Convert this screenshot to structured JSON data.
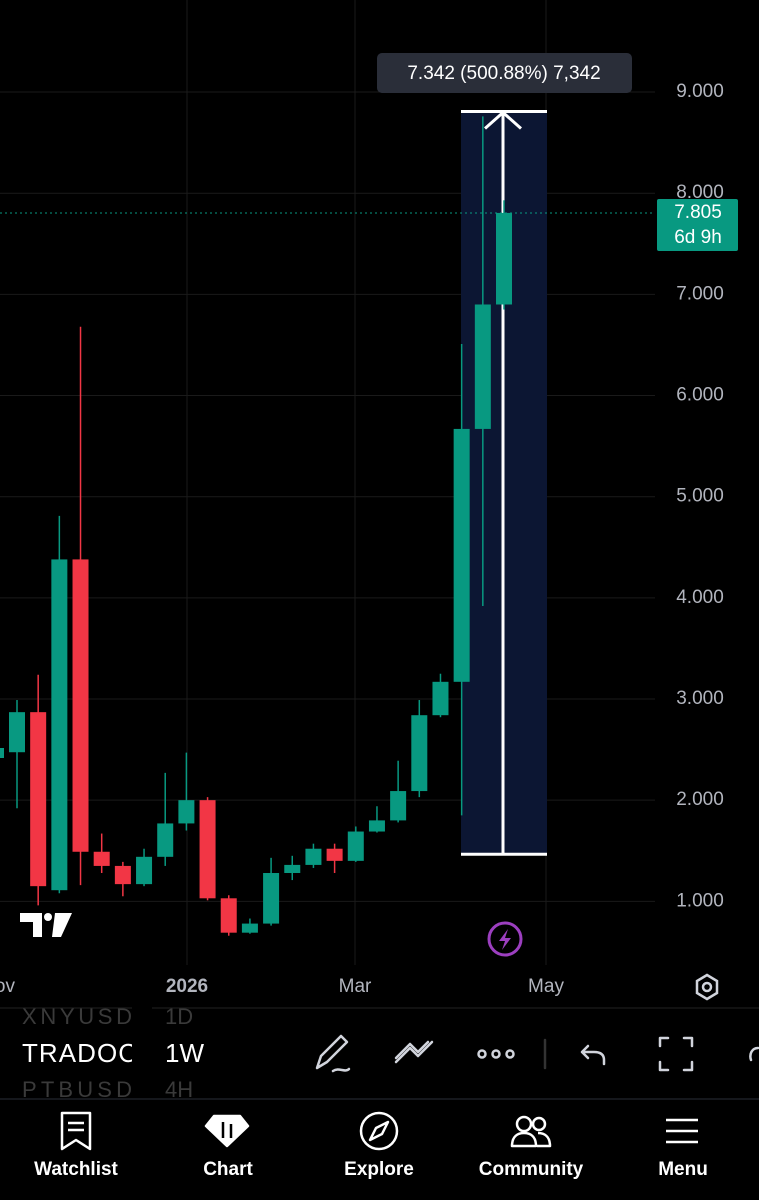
{
  "chart_data": {
    "type": "candlestick",
    "open": [
      2.474,
      2.87,
      1.11,
      4.38,
      1.49,
      1.35,
      1.17,
      1.44,
      1.77,
      2.0,
      1.03,
      0.69,
      0.78,
      1.28,
      1.36,
      1.52,
      1.4,
      1.69,
      1.8,
      2.09,
      2.84,
      3.17,
      5.67,
      6.9
    ],
    "high": [
      2.99,
      3.24,
      4.81,
      6.68,
      1.67,
      1.39,
      1.52,
      2.27,
      2.47,
      2.03,
      1.06,
      0.83,
      1.43,
      1.45,
      1.57,
      1.57,
      1.74,
      1.94,
      2.39,
      2.99,
      3.25,
      6.51,
      8.76,
      7.93
    ],
    "low": [
      1.92,
      0.96,
      1.08,
      1.16,
      1.28,
      1.05,
      1.15,
      1.35,
      1.7,
      1.01,
      0.66,
      0.68,
      0.76,
      1.21,
      1.33,
      1.28,
      1.39,
      1.68,
      1.78,
      2.03,
      2.82,
      1.85,
      3.92,
      6.85
    ],
    "close": [
      2.87,
      1.15,
      4.38,
      1.49,
      1.35,
      1.17,
      1.44,
      1.77,
      2.0,
      1.03,
      0.69,
      0.78,
      1.28,
      1.36,
      1.52,
      1.4,
      1.69,
      1.8,
      2.09,
      2.84,
      3.17,
      5.67,
      6.9,
      7.805
    ],
    "up_color": "#089981",
    "down_color": "#f23645",
    "ylim": [
      0.42,
      9.91
    ],
    "yticks": [
      {
        "value": 1,
        "label": "1.000"
      },
      {
        "value": 2,
        "label": "2.000"
      },
      {
        "value": 3,
        "label": "3.000"
      },
      {
        "value": 4,
        "label": "4.000"
      },
      {
        "value": 5,
        "label": "5.000"
      },
      {
        "value": 6,
        "label": "6.000"
      },
      {
        "value": 7,
        "label": "7.000"
      },
      {
        "value": 8,
        "label": "8.000"
      },
      {
        "value": 9,
        "label": "9.000"
      }
    ],
    "grid": true,
    "x_labels": [
      "ov",
      "2026",
      "Mar",
      "May"
    ],
    "last_price": 7.805,
    "countdown": "6d 9h",
    "measure": {
      "from": 1.466,
      "to": 8.808,
      "label": "7.342 (500.88%) 7,342"
    }
  },
  "ticker_rows": [
    {
      "symbol": "XNYUSD",
      "interval": "1D"
    },
    {
      "symbol": "TRADOC",
      "interval": "1W"
    },
    {
      "symbol": "PTBUSD",
      "interval": "4H"
    }
  ],
  "nav": [
    "Watchlist",
    "Chart",
    "Explore",
    "Community",
    "Menu"
  ]
}
